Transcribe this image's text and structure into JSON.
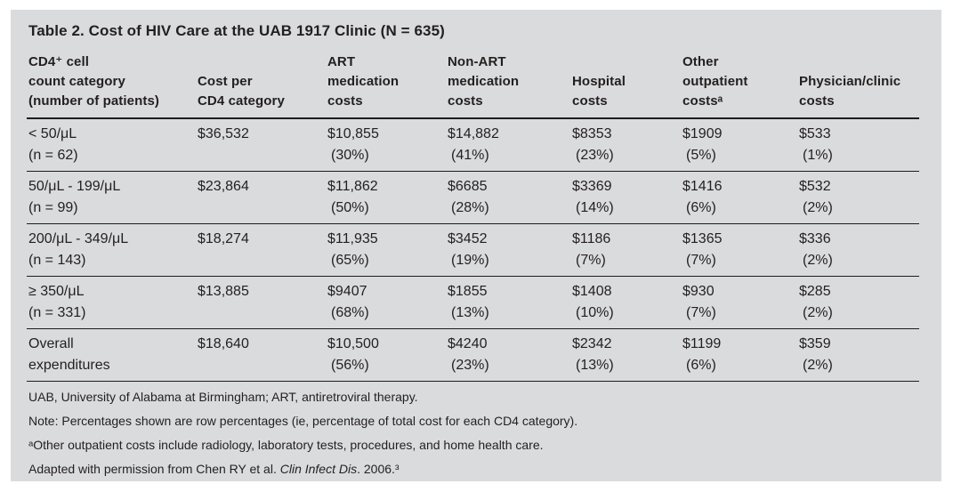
{
  "title": "Table 2. Cost of HIV Care at the UAB 1917 Clinic (N = 635)",
  "colors": {
    "panel_bg": "#dadbdc",
    "text": "#231f20",
    "rule": "#1d1d1f",
    "page_bg": "#ffffff"
  },
  "table": {
    "headers": [
      "CD4⁺ cell\ncount category\n(number of patients)",
      "Cost per\nCD4 category",
      "ART\nmedication\ncosts",
      "Non-ART\nmedication\ncosts",
      "Hospital\ncosts",
      "Other\noutpatient\ncostsᵃ",
      "Physician/clinic\ncosts"
    ],
    "rows": [
      {
        "category": "< 50/μL\n(n = 62)",
        "cost_per_cd4": "$36,532",
        "art": "$10,855",
        "art_pct": "(30%)",
        "non_art": "$14,882",
        "non_art_pct": "(41%)",
        "hospital": "$8353",
        "hospital_pct": "(23%)",
        "other_outpatient": "$1909",
        "other_outpatient_pct": "(5%)",
        "physician": "$533",
        "physician_pct": "(1%)"
      },
      {
        "category": "50/μL - 199/μL\n(n = 99)",
        "cost_per_cd4": "$23,864",
        "art": "$11,862",
        "art_pct": "(50%)",
        "non_art": "$6685",
        "non_art_pct": "(28%)",
        "hospital": "$3369",
        "hospital_pct": "(14%)",
        "other_outpatient": "$1416",
        "other_outpatient_pct": "(6%)",
        "physician": "$532",
        "physician_pct": "(2%)"
      },
      {
        "category": "200/μL - 349/μL\n(n = 143)",
        "cost_per_cd4": "$18,274",
        "art": "$11,935",
        "art_pct": "(65%)",
        "non_art": "$3452",
        "non_art_pct": "(19%)",
        "hospital": "$1186",
        "hospital_pct": "(7%)",
        "other_outpatient": "$1365",
        "other_outpatient_pct": "(7%)",
        "physician": "$336",
        "physician_pct": "(2%)"
      },
      {
        "category": "≥ 350/μL\n(n = 331)",
        "cost_per_cd4": "$13,885",
        "art": "$9407",
        "art_pct": "(68%)",
        "non_art": "$1855",
        "non_art_pct": "(13%)",
        "hospital": "$1408",
        "hospital_pct": "(10%)",
        "other_outpatient": "$930",
        "other_outpatient_pct": "(7%)",
        "physician": "$285",
        "physician_pct": "(2%)"
      },
      {
        "category": "Overall\nexpenditures",
        "cost_per_cd4": "$18,640",
        "art": "$10,500",
        "art_pct": "(56%)",
        "non_art": "$4240",
        "non_art_pct": "(23%)",
        "hospital": "$2342",
        "hospital_pct": "(13%)",
        "other_outpatient": "$1199",
        "other_outpatient_pct": "(6%)",
        "physician": "$359",
        "physician_pct": "(2%)"
      }
    ]
  },
  "footnotes": {
    "abbreviations": "UAB, University of Alabama at Birmingham; ART, antiretroviral therapy.",
    "note": "Note: Percentages shown are row percentages (ie, percentage of total cost for each CD4 category).",
    "footnote_a": "ᵃOther outpatient costs include radiology, laboratory tests, procedures, and home health care.",
    "adapted_prefix": "Adapted with permission from Chen RY et al. ",
    "adapted_source_italic": "Clin Infect Dis",
    "adapted_suffix": ". 2006.³"
  }
}
